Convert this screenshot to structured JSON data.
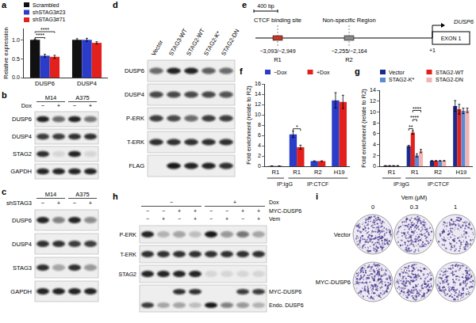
{
  "chart_data": [
    {
      "panel": "a",
      "type": "bar",
      "y_label": "Relative expression",
      "categories": [
        "DUSP6",
        "DUSP4"
      ],
      "series": [
        {
          "name": "Scrambled",
          "color": "#111111",
          "values": [
            1.0,
            1.0
          ],
          "errors": [
            0.02,
            0.03
          ]
        },
        {
          "name": "shSTAG3#23",
          "color": "#2a3cc8",
          "values": [
            0.58,
            1.0
          ],
          "errors": [
            0.04,
            0.04
          ]
        },
        {
          "name": "shSTAG3#71",
          "color": "#e3211c",
          "values": [
            0.55,
            0.92
          ],
          "errors": [
            0.04,
            0.03
          ]
        }
      ],
      "ylim": [
        0,
        1.3
      ],
      "yticks": [
        {
          "value": 0,
          "label": "0.0"
        },
        {
          "value": 0.5,
          "label": "0.5"
        },
        {
          "value": 1,
          "label": "1.0"
        }
      ],
      "legend": "top-left",
      "annotations": [
        {
          "text": "****",
          "category_index": 0,
          "between": [
            "Scrambled",
            "shSTAG3#23"
          ]
        },
        {
          "text": "****",
          "category_index": 0,
          "between": [
            "Scrambled",
            "shSTAG3#71"
          ]
        }
      ]
    },
    {
      "panel": "f",
      "type": "bar",
      "y_label": "Fold enrichment (relate to R2)",
      "categories": [
        "R1",
        "R1",
        "R2",
        "H19"
      ],
      "category_groups": [
        "IP:IgG",
        "IP:CTCF",
        "IP:CTCF",
        "IP:CTCF"
      ],
      "series": [
        {
          "name": "−Dox",
          "color": "#2a3cc8",
          "values": [
            0.05,
            6.2,
            1,
            12.8
          ],
          "errors": [
            0.02,
            0.6,
            0.05,
            1.5
          ]
        },
        {
          "name": "+Dox",
          "color": "#e3211c",
          "values": [
            0.05,
            3.7,
            1,
            12.5
          ],
          "errors": [
            0.02,
            0.4,
            0.05,
            1.3
          ]
        }
      ],
      "ylim": [
        0,
        16
      ],
      "yticks": [
        0,
        2,
        4,
        6,
        8,
        10,
        12,
        14,
        16
      ],
      "legend": "top",
      "annotations": [
        {
          "text": "*",
          "category_index": 1,
          "between": [
            "−Dox",
            "+Dox"
          ]
        }
      ]
    },
    {
      "panel": "g",
      "type": "bar",
      "y_label": "Fold enrichment (relate to R2)",
      "categories": [
        "R1",
        "R1",
        "R2",
        "H19"
      ],
      "category_groups": [
        "IP:IgG",
        "IP:CTCF",
        "IP:CTCF",
        "IP:CTCF"
      ],
      "series": [
        {
          "name": "Vector",
          "color": "#1c2a8c",
          "values": [
            0.1,
            3.7,
            1,
            11.1
          ],
          "errors": [
            0.02,
            0.15,
            0.05,
            1.0
          ]
        },
        {
          "name": "STAG2-WT",
          "color": "#e3211c",
          "values": [
            0.1,
            6.2,
            1,
            10.5
          ],
          "errors": [
            0.02,
            0.3,
            0.05,
            0.9
          ]
        },
        {
          "name": "STAG2-K*",
          "color": "#5b8ad6",
          "values": [
            0.1,
            2.0,
            1,
            10.2
          ],
          "errors": [
            0.02,
            0.3,
            0.05,
            0.5
          ]
        },
        {
          "name": "STAG2-DN",
          "color": "#f2b3b3",
          "values": [
            0.1,
            2.8,
            1,
            10.3
          ],
          "errors": [
            0.02,
            0.3,
            0.05,
            0.4
          ]
        }
      ],
      "ylim": [
        0,
        14
      ],
      "yticks": [
        0,
        2,
        4,
        6,
        8,
        10,
        12,
        14
      ],
      "legend": "top",
      "annotations": [
        {
          "text": "**",
          "category_index": 1,
          "between": [
            "Vector",
            "STAG2-WT"
          ]
        },
        {
          "text": "****",
          "category_index": 1,
          "between": [
            "STAG2-WT",
            "STAG2-K*"
          ]
        },
        {
          "text": "****",
          "category_index": 1,
          "between": [
            "STAG2-WT",
            "STAG2-DN"
          ]
        }
      ]
    }
  ],
  "blots": [
    {
      "panel": "b",
      "lane_groups": [
        {
          "labels": [
            "M14",
            "M14",
            "A375",
            "A375"
          ]
        }
      ],
      "conditions": [
        {
          "label": "Dox",
          "values": [
            "−",
            "+",
            "−",
            "+"
          ]
        }
      ],
      "rows": [
        {
          "label": "DUSP6",
          "bands": [
            0.9,
            0.6,
            0.9,
            0.55
          ]
        },
        {
          "label": "DUSP4",
          "bands": [
            0.8,
            0.8,
            0.85,
            0.85
          ]
        },
        {
          "label": "STAG2",
          "bands": [
            0.85,
            0.1,
            0.9,
            0.1
          ]
        },
        {
          "label": "GAPDH",
          "bands": [
            0.9,
            0.9,
            0.9,
            0.9
          ]
        }
      ]
    },
    {
      "panel": "c",
      "lane_groups": [
        {
          "labels": [
            "M14",
            "M14",
            "A375",
            "A375"
          ]
        }
      ],
      "conditions": [
        {
          "label": "shSTAG3",
          "values": [
            "−",
            "+",
            "−",
            "+"
          ]
        }
      ],
      "rows": [
        {
          "label": "DUSP6",
          "bands": [
            0.9,
            0.5,
            0.9,
            0.45
          ]
        },
        {
          "label": "DUSP4",
          "bands": [
            0.85,
            0.85,
            0.8,
            0.8
          ]
        },
        {
          "label": "STAG3",
          "bands": [
            0.85,
            0.35,
            0.85,
            0.4
          ]
        },
        {
          "label": "GAPDH",
          "bands": [
            0.9,
            0.9,
            0.9,
            0.9
          ]
        }
      ]
    },
    {
      "panel": "d",
      "lane_titles": [
        "Vector",
        "STAG3-WT",
        "STAG2-WT",
        "STAG2-K*",
        "STAG2-DN"
      ],
      "rows": [
        {
          "label": "DUSP6",
          "bands": [
            0.6,
            0.9,
            0.9,
            0.65,
            0.6
          ]
        },
        {
          "label": "DUSP4",
          "bands": [
            0.75,
            0.75,
            0.75,
            0.75,
            0.7
          ]
        },
        {
          "label": "P-ERK",
          "bands": [
            0.8,
            0.75,
            0.6,
            0.8,
            0.8
          ]
        },
        {
          "label": "T-ERK",
          "bands": [
            0.85,
            0.85,
            0.85,
            0.85,
            0.85
          ]
        },
        {
          "label": "FLAG",
          "bands": [
            0,
            0.95,
            0.9,
            0.9,
            0.85
          ]
        }
      ]
    },
    {
      "panel": "h",
      "lane_groups": [
        {
          "label": "Dox",
          "labels": [
            "−",
            "−",
            "−",
            "−",
            "+",
            "+",
            "+",
            "+"
          ]
        }
      ],
      "conditions": [
        {
          "label": "MYC-DUSP6",
          "values": [
            "−",
            "−",
            "+",
            "+",
            "−",
            "−",
            "+",
            "+"
          ]
        },
        {
          "label": "Vem",
          "values": [
            "−",
            "+",
            "−",
            "+",
            "−",
            "+",
            "−",
            "+"
          ]
        }
      ],
      "rows": [
        {
          "label": "P-ERK",
          "bands": [
            0.9,
            0.25,
            0.35,
            0.2,
            0.95,
            0.4,
            0.55,
            0.3
          ]
        },
        {
          "label": "T-ERK",
          "bands": [
            0.85,
            0.85,
            0.85,
            0.85,
            0.85,
            0.85,
            0.85,
            0.85
          ]
        },
        {
          "label": "STAG2",
          "bands": [
            0.9,
            0.9,
            0.9,
            0.9,
            0.1,
            0.1,
            0.1,
            0.1
          ]
        },
        {
          "sublanes": [
            {
              "label": "MYC-DUSP6",
              "bands": [
                0,
                0,
                0.85,
                0.85,
                0,
                0,
                0.8,
                0.8
              ]
            },
            {
              "label": "Endo. DUSP6",
              "bands": [
                0.8,
                0.3,
                0.35,
                0.2,
                0.95,
                0.5,
                0.4,
                0.25
              ]
            }
          ]
        }
      ]
    }
  ],
  "diagram": {
    "panel": "e",
    "scale_bar": "400 bp",
    "gene": "DUSP6",
    "exon": "EXON 1",
    "tss": "+1",
    "regions": [
      {
        "name": "CTCF binding site",
        "coordinates": "−3,093/−2,949",
        "label": "R1"
      },
      {
        "name": "Non-specific Region",
        "coordinates": "−2,255/−2,164",
        "label": "R2"
      }
    ]
  },
  "colonies": {
    "panel": "i",
    "title": "Vem (μM)",
    "doses": [
      0,
      0.3,
      1
    ],
    "rows": [
      {
        "label": "Vector",
        "density": [
          0.9,
          0.75,
          0.6
        ]
      },
      {
        "label": "MYC-DUSP6",
        "density": [
          0.95,
          0.92,
          0.88
        ]
      }
    ]
  }
}
